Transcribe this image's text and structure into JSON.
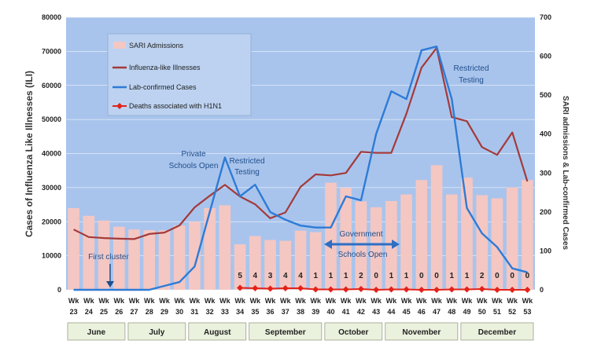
{
  "chart_data": {
    "type": "bar",
    "title": "",
    "categories": [
      "Wk 23",
      "Wk 24",
      "Wk 25",
      "Wk 26",
      "Wk 27",
      "Wk 28",
      "Wk 29",
      "Wk 30",
      "Wk 31",
      "Wk 32",
      "Wk 33",
      "Wk 34",
      "Wk 35",
      "Wk 36",
      "Wk 37",
      "Wk 38",
      "Wk 39",
      "Wk 40",
      "Wk 41",
      "Wk 42",
      "Wk 43",
      "Wk 44",
      "Wk 45",
      "Wk 46",
      "Wk 47",
      "Wk 48",
      "Wk 49",
      "Wk 50",
      "Wk 51",
      "Wk 52",
      "Wk 53"
    ],
    "wk_top": [
      "Wk",
      "Wk",
      "Wk",
      "Wk",
      "Wk",
      "Wk",
      "Wk",
      "Wk",
      "Wk",
      "Wk",
      "Wk",
      "Wk",
      "Wk",
      "Wk",
      "Wk",
      "Wk",
      "Wk",
      "Wk",
      "Wk",
      "Wk",
      "Wk",
      "Wk",
      "Wk",
      "Wk",
      "Wk",
      "Wk",
      "Wk",
      "Wk",
      "Wk",
      "Wk",
      "Wk"
    ],
    "wk_num": [
      "23",
      "24",
      "25",
      "26",
      "27",
      "28",
      "29",
      "30",
      "31",
      "32",
      "33",
      "34",
      "35",
      "36",
      "37",
      "38",
      "39",
      "40",
      "41",
      "42",
      "43",
      "44",
      "45",
      "46",
      "47",
      "48",
      "49",
      "50",
      "51",
      "52",
      "53"
    ],
    "ylabel": "Cases of Influenza Like Illnesses (ILI)",
    "y2label": "SARI admissions & Lab-confirmed Cases",
    "ylim": [
      0,
      80000
    ],
    "y2lim": [
      0,
      700
    ],
    "yticks": [
      "0",
      "10000",
      "20000",
      "30000",
      "40000",
      "50000",
      "60000",
      "70000",
      "80000"
    ],
    "y2ticks": [
      "0",
      "100",
      "200",
      "300",
      "400",
      "500",
      "600",
      "700"
    ],
    "legend_position": "top-left",
    "series": [
      {
        "name": "SARI Admissions",
        "type": "bar",
        "axis": "right",
        "color": "#f4c7c3",
        "values": [
          210,
          190,
          178,
          162,
          155,
          153,
          153,
          165,
          175,
          210,
          217,
          117,
          138,
          128,
          126,
          152,
          148,
          275,
          262,
          227,
          212,
          228,
          245,
          282,
          320,
          245,
          288,
          243,
          235,
          263,
          282
        ]
      },
      {
        "name": "Influenza-like Illnesses",
        "type": "line",
        "axis": "left",
        "color": "#a33a3a",
        "values": [
          17700,
          15500,
          15200,
          15000,
          14900,
          16400,
          16800,
          18900,
          24200,
          27600,
          30800,
          27400,
          25100,
          21000,
          22700,
          30200,
          33900,
          33600,
          34300,
          40500,
          40200,
          40200,
          51700,
          65200,
          71000,
          50700,
          49500,
          41900,
          39600,
          46200,
          31800
        ]
      },
      {
        "name": "Lab-confirmed Cases",
        "type": "line",
        "axis": "right",
        "color": "#2e7bd6",
        "values": [
          0,
          0,
          0,
          0,
          0,
          0,
          10,
          20,
          60,
          200,
          340,
          240,
          270,
          200,
          180,
          165,
          160,
          160,
          240,
          230,
          400,
          510,
          490,
          615,
          625,
          490,
          210,
          145,
          110,
          55,
          45
        ]
      },
      {
        "name": "Deaths associated with H1N1",
        "type": "line",
        "axis": "right",
        "color": "#e32219",
        "values": [
          null,
          null,
          null,
          null,
          null,
          null,
          null,
          null,
          null,
          null,
          null,
          5,
          4,
          3,
          4,
          4,
          1,
          1,
          1,
          2,
          0,
          1,
          1,
          0,
          0,
          1,
          1,
          2,
          0,
          0,
          0
        ]
      }
    ],
    "death_labels": [
      "5",
      "4",
      "3",
      "4",
      "4",
      "1",
      "1",
      "1",
      "2",
      "0",
      "1",
      "1",
      "0",
      "0",
      "1",
      "1",
      "2",
      "0",
      "0",
      "0"
    ],
    "months": [
      "June",
      "July",
      "August",
      "September",
      "October",
      "November",
      "December"
    ],
    "annotations": {
      "first_cluster": "First cluster",
      "private_1": "Private",
      "private_2": "Schools Open",
      "restricted1_1": "Restricted",
      "restricted1_2": "Testing",
      "gov_1": "Government",
      "gov_2": "Schools Open",
      "restricted2_1": "Restricted",
      "restricted2_2": "Testing"
    },
    "colors": {
      "plot_bg": "#a9c4ec",
      "grid": "#ffffff",
      "month_bg": "#eaf1dd"
    }
  }
}
